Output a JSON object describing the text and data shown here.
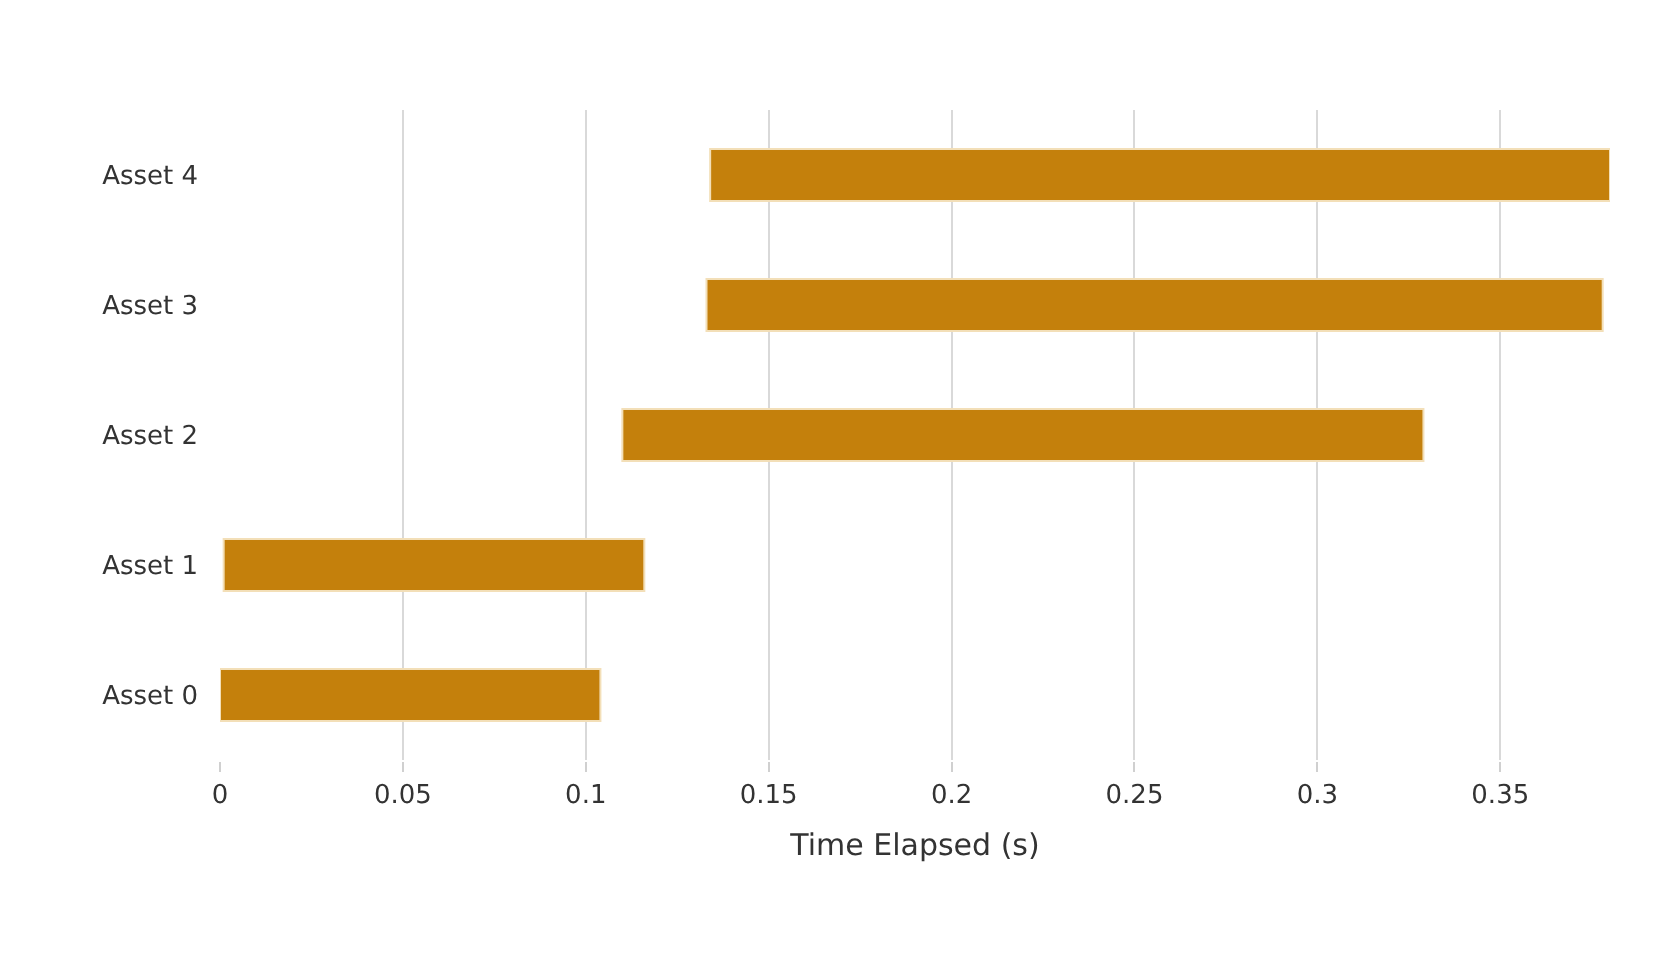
{
  "chart_data": {
    "type": "bar",
    "orientation": "horizontal",
    "xlabel": "Time Elapsed (s)",
    "categories": [
      "Asset 4",
      "Asset 3",
      "Asset 2",
      "Asset 1",
      "Asset 0"
    ],
    "base": [
      0.134,
      0.133,
      0.11,
      0.001,
      0
    ],
    "values": [
      0.246,
      0.245,
      0.219,
      0.115,
      0.104
    ],
    "color": "#c4800c",
    "xlim": [
      0,
      0.38
    ],
    "xticks": [
      0,
      0.05,
      0.1,
      0.15,
      0.2,
      0.25,
      0.3,
      0.35
    ],
    "grid": "x"
  }
}
